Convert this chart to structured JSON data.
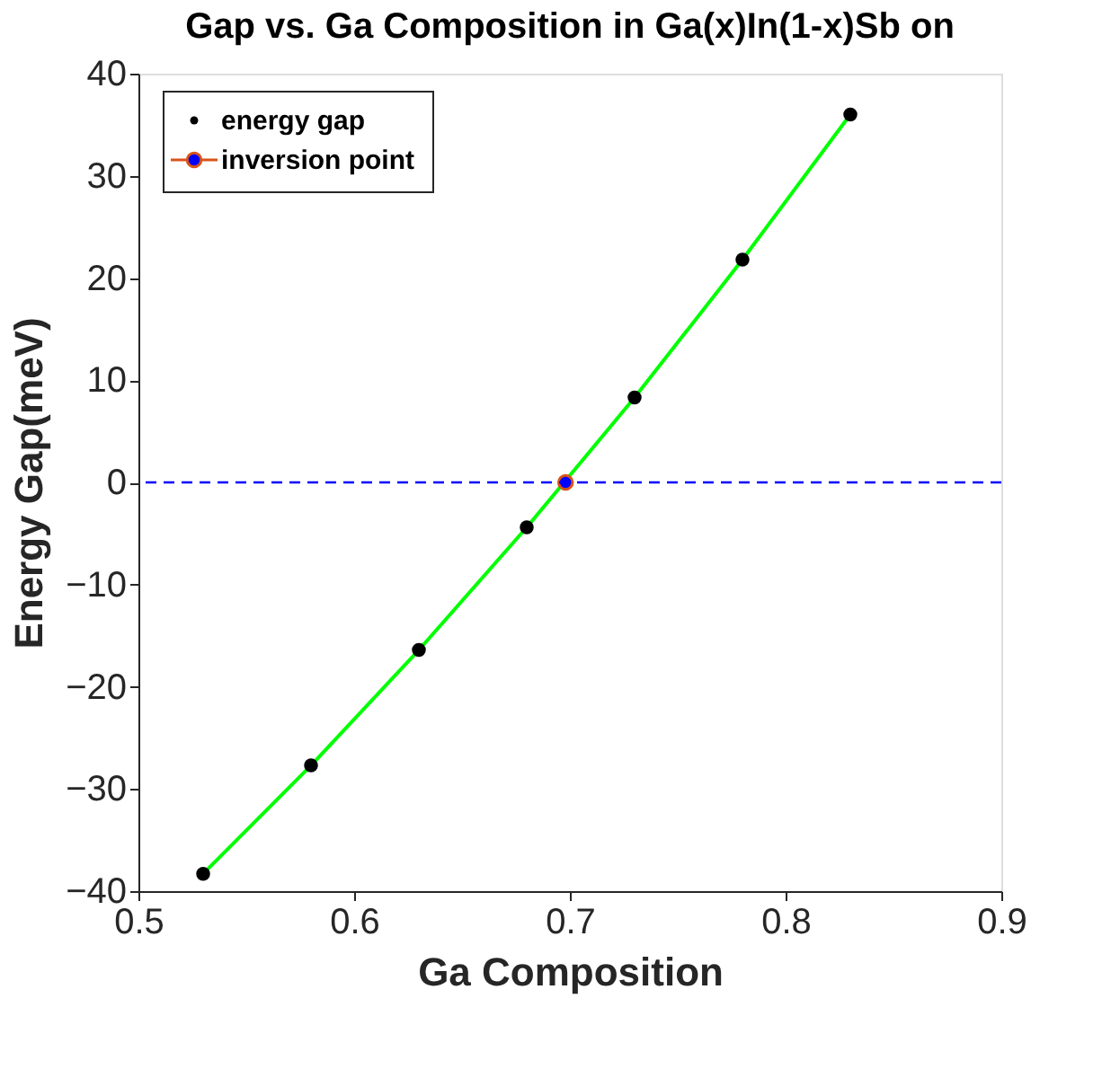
{
  "chart_data": {
    "type": "scatter",
    "title": "Gap vs. Ga Composition in Ga(x)In(1-x)Sb on",
    "xlabel": "Ga Composition",
    "ylabel": "Energy Gap(meV)",
    "xlim": [
      0.5,
      0.9
    ],
    "xticks": [
      0.5,
      0.6,
      0.7,
      0.8,
      0.9
    ],
    "ylim": [
      -40,
      40
    ],
    "yticks": [
      -40,
      -30,
      -20,
      -10,
      0,
      10,
      20,
      30,
      40
    ],
    "grid": false,
    "legend": "top left",
    "series": [
      {
        "type": "line",
        "color": "#00ff00",
        "x": [
          0.53,
          0.58,
          0.63,
          0.68,
          0.73,
          0.78,
          0.83
        ],
        "values": [
          -38.3,
          -27.7,
          -16.4,
          -4.4,
          8.3,
          21.8,
          36.0
        ]
      },
      {
        "name": "energy gap",
        "color": "#000000",
        "x": [
          0.53,
          0.58,
          0.63,
          0.68,
          0.73,
          0.78,
          0.83
        ],
        "values": [
          -38.3,
          -27.7,
          -16.4,
          -4.4,
          8.3,
          21.8,
          36.0
        ]
      },
      {
        "name": "inversion point",
        "type": "scatter",
        "color": "#0000ff",
        "x": [
          0.698
        ],
        "values": [
          0
        ]
      }
    ],
    "ref_lines": [
      {
        "axis": "y",
        "value": 0,
        "color": "#0000ff",
        "line_style": "dashed"
      }
    ]
  }
}
